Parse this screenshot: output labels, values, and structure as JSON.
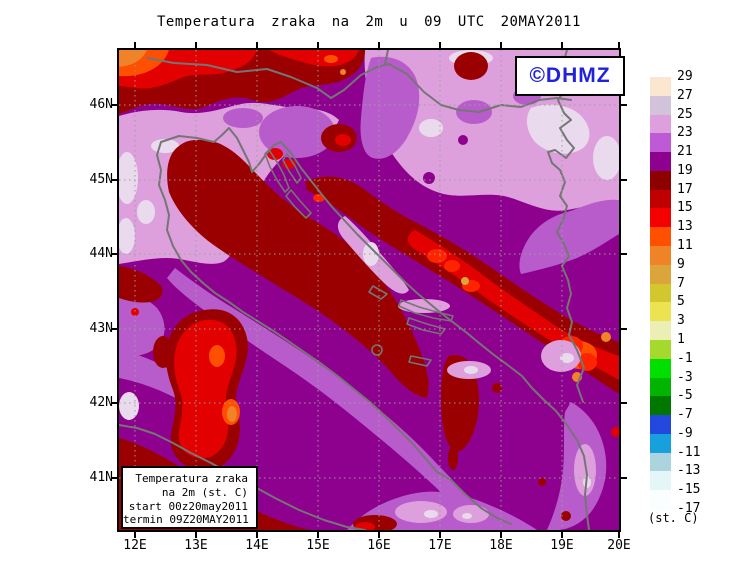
{
  "title": "Temperatura zraka na 2m u 09 UTC 20MAY2011",
  "logo": {
    "text": "©DHMZ",
    "color": "#2222DD"
  },
  "info_box": {
    "lines": [
      "Temperatura zraka",
      "na 2m (st. C)",
      "start 00z20may2011",
      "termin 09Z20MAY2011"
    ]
  },
  "axes": {
    "y_labels": [
      "46N",
      "45N",
      "44N",
      "43N",
      "42N",
      "41N"
    ],
    "x_labels": [
      "12E",
      "13E",
      "14E",
      "15E",
      "16E",
      "17E",
      "18E",
      "19E",
      "20E"
    ]
  },
  "colorbar": {
    "unit_label": "(st. C)",
    "levels": [
      "29",
      "27",
      "25",
      "23",
      "21",
      "19",
      "17",
      "15",
      "13",
      "11",
      "9",
      "7",
      "5",
      "3",
      "1",
      "-1",
      "-3",
      "-5",
      "-7",
      "-9",
      "-11",
      "-13",
      "-15",
      "-17"
    ],
    "colors": [
      "#FBE6D0",
      "#D2C2DA",
      "#DDA0DD",
      "#BE5AD6",
      "#8E008E",
      "#8E0000",
      "#C00000",
      "#F40000",
      "#FF5000",
      "#F08228",
      "#DCA53C",
      "#D2C72E",
      "#EDE24F",
      "#EBEFB4",
      "#A5D92E",
      "#00E000",
      "#00B400",
      "#007800",
      "#2248DD",
      "#18A0DC",
      "#ABD4DE",
      "#E4F6F8",
      "#FAFEFE"
    ]
  },
  "chart_data": {
    "type": "filled-contour-map",
    "variable": "Air temperature at 2 m",
    "unit": "st. C (°C)",
    "valid_time": "09 UTC 20MAY2011",
    "run_start": "00z20may2011",
    "region_extent": {
      "lon": [
        "12E",
        "20E"
      ],
      "lat": [
        "41N",
        "46N"
      ]
    },
    "contour_interval": 2,
    "scale_levels": [
      29,
      27,
      25,
      23,
      21,
      19,
      17,
      15,
      13,
      11,
      9,
      7,
      5,
      3,
      1,
      -1,
      -3,
      -5,
      -7,
      -9,
      -11,
      -13,
      -15,
      -17
    ],
    "dominant_values_on_map": {
      "adriatic_sea": "17-19",
      "inland_croatia_bosnia_mountains": "11-17",
      "pannonian_plain": "23-27",
      "po_valley_istria": "23-25",
      "alps_top_left": "9-15",
      "apennines_italy": "11-15"
    }
  }
}
